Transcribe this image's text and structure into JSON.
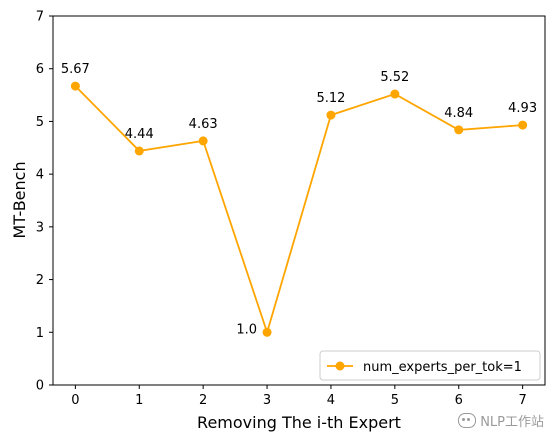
{
  "chart_data": {
    "type": "line",
    "x": [
      0,
      1,
      2,
      3,
      4,
      5,
      6,
      7
    ],
    "series": [
      {
        "name": "num_experts_per_tok=1",
        "values": [
          5.67,
          4.44,
          4.63,
          1.0,
          5.12,
          5.52,
          4.84,
          4.93
        ],
        "color": "#FFA500"
      }
    ],
    "data_labels": [
      "5.67",
      "4.44",
      "4.63",
      "1.0",
      "5.12",
      "5.52",
      "4.84",
      "4.93"
    ],
    "xlabel": "Removing The i-th Expert",
    "ylabel": "MT-Bench",
    "xlim": [
      -0.35,
      7.35
    ],
    "ylim": [
      0,
      7
    ],
    "xticks": [
      0,
      1,
      2,
      3,
      4,
      5,
      6,
      7
    ],
    "yticks": [
      0,
      1,
      2,
      3,
      4,
      5,
      6,
      7
    ],
    "grid": false,
    "legend_position": "lower-right"
  },
  "watermark": {
    "text": "NLP工作站",
    "icon": "wechat-icon"
  }
}
